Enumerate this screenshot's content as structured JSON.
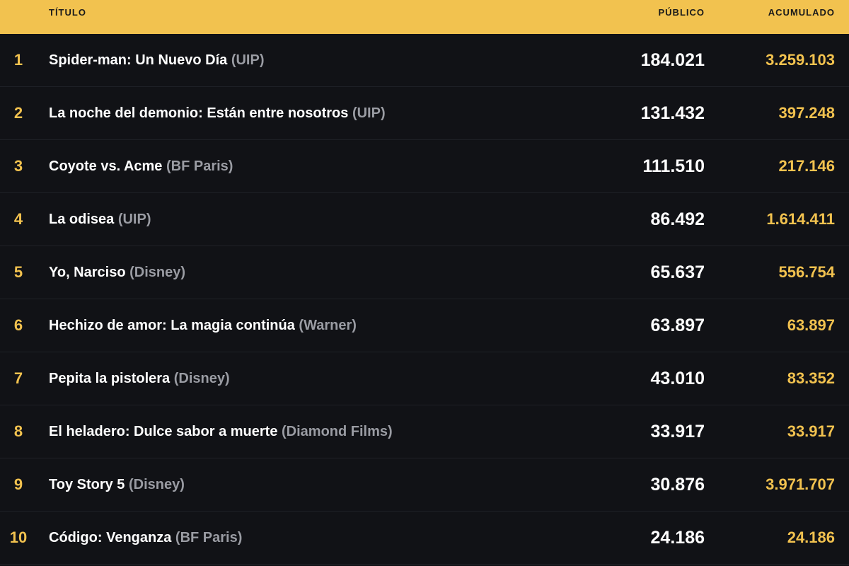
{
  "table": {
    "header": [
      "TÍTULO",
      "PÚBLICO",
      "ACUMULADO"
    ],
    "rows": [
      {
        "rank": "1",
        "title": "Spider-man: Un Nuevo Día",
        "distributor": "(UIP)",
        "public": "184.021",
        "cumulative": "3.259.103"
      },
      {
        "rank": "2",
        "title": "La noche del demonio: Están entre nosotros",
        "distributor": "(UIP)",
        "public": "131.432",
        "cumulative": "397.248"
      },
      {
        "rank": "3",
        "title": "Coyote vs. Acme",
        "distributor": "(BF Paris)",
        "public": "111.510",
        "cumulative": "217.146"
      },
      {
        "rank": "4",
        "title": "La odisea",
        "distributor": "(UIP)",
        "public": "86.492",
        "cumulative": "1.614.411"
      },
      {
        "rank": "5",
        "title": "Yo, Narciso",
        "distributor": "(Disney)",
        "public": "65.637",
        "cumulative": "556.754"
      },
      {
        "rank": "6",
        "title": "Hechizo de amor: La magia continúa",
        "distributor": "(Warner)",
        "public": "63.897",
        "cumulative": "63.897"
      },
      {
        "rank": "7",
        "title": "Pepita la pistolera",
        "distributor": "(Disney)",
        "public": "43.010",
        "cumulative": "83.352"
      },
      {
        "rank": "8",
        "title": "El heladero: Dulce sabor a muerte",
        "distributor": "(Diamond Films)",
        "public": "33.917",
        "cumulative": "33.917"
      },
      {
        "rank": "9",
        "title": "Toy Story 5",
        "distributor": "(Disney)",
        "public": "30.876",
        "cumulative": "3.971.707"
      },
      {
        "rank": "10",
        "title": "Código: Venganza",
        "distributor": "(BF Paris)",
        "public": "24.186",
        "cumulative": "24.186"
      }
    ]
  }
}
